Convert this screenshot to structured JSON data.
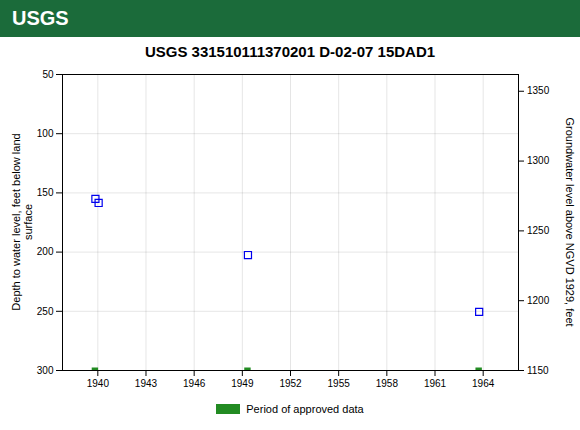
{
  "chart_data": {
    "type": "scatter",
    "title": "USGS 331510111370201 D-02-07 15DAD1",
    "annotations": [
      {
        "text": "USGS",
        "color": "#1b6b3a"
      }
    ],
    "ylabel": "Depth to water level, feet below land\nsurface",
    "y2label": "Groundwater level above NGVD 1929, feet",
    "xlim": [
      1937.8,
      1966.2
    ],
    "xticks": [
      1940,
      1943,
      1946,
      1949,
      1952,
      1955,
      1958,
      1961,
      1964
    ],
    "ylim": [
      300,
      50
    ],
    "yticks": [
      50,
      100,
      150,
      200,
      250,
      300
    ],
    "y2lim": [
      1150,
      1362
    ],
    "y2ticks": [
      1150,
      1200,
      1250,
      1300,
      1350
    ],
    "grid": true,
    "legend": "bottom",
    "series": [
      {
        "type": "scatter",
        "marker": "square",
        "color": "#0000ee",
        "x": [
          1939.85,
          1940.05,
          1949.35,
          1963.75
        ],
        "values": [
          155.0,
          158.5,
          202.5,
          250.5
        ]
      },
      {
        "name": "Period of approved data",
        "type": "bar",
        "color": "#228B22",
        "x": [
          1939.85,
          1949.35,
          1963.75
        ],
        "values": [
          300,
          300,
          300
        ],
        "widths": [
          0.4,
          0.4,
          0.4
        ]
      }
    ]
  }
}
